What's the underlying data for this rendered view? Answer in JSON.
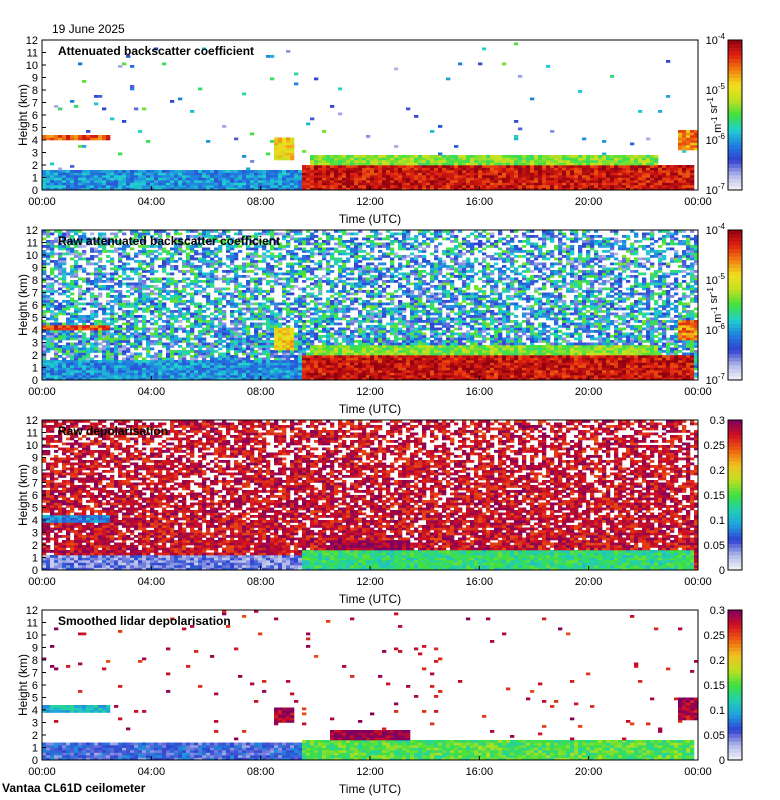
{
  "date": "19 June 2025",
  "footer": "Vantaa CL61D ceilometer",
  "colors": {
    "background": "#ffffff",
    "frame": "#000000",
    "no_data": "#ffffff"
  },
  "chart_data": [
    {
      "type": "heatmap",
      "title": "Attenuated backscatter coefficient",
      "xlabel": "Time (UTC)",
      "ylabel": "Height (km)",
      "xlim": [
        0,
        24
      ],
      "ylim": [
        0,
        12
      ],
      "x_ticks": [
        "00:00",
        "04:00",
        "08:00",
        "12:00",
        "16:00",
        "20:00",
        "00:00"
      ],
      "y_ticks": [
        "0",
        "1",
        "2",
        "3",
        "4",
        "5",
        "6",
        "7",
        "8",
        "9",
        "10",
        "11",
        "12"
      ],
      "colorbar": {
        "scale": "log",
        "range": [
          1e-07,
          0.0001
        ],
        "tick_labels": [
          "10-7",
          "10-6",
          "10-5",
          "10-4"
        ],
        "tick_values": [
          -7,
          -6,
          -5,
          -4
        ],
        "label": "m-1 sr-1",
        "colormap": [
          "#f4f4f8",
          "#b0b8e8",
          "#3040d0",
          "#2080e0",
          "#20d0d0",
          "#40e040",
          "#c0e020",
          "#f0e020",
          "#f08010",
          "#e02010",
          "#900010"
        ]
      },
      "noise_level": 0.015,
      "features": [
        {
          "name": "low cloud layer",
          "hours": [
            0,
            2.5
          ],
          "height_km": [
            4.0,
            4.3
          ],
          "value": 0.85
        },
        {
          "name": "boundary layer",
          "hours": [
            0,
            9.5
          ],
          "height_km": [
            0,
            1.6
          ],
          "value": 0.32
        },
        {
          "name": "daytime boundary layer",
          "hours": [
            9.5,
            23.8
          ],
          "height_km": [
            0,
            2.0
          ],
          "value": 0.93
        },
        {
          "name": "afternoon cloud",
          "hours": [
            9.8,
            22.5
          ],
          "height_km": [
            2.0,
            2.8
          ],
          "value": 0.55
        },
        {
          "name": "convective plume",
          "hours": [
            8.5,
            9.2
          ],
          "height_km": [
            2.5,
            4.2
          ],
          "value": 0.7
        },
        {
          "name": "late evening cloud",
          "hours": [
            23.3,
            24
          ],
          "height_km": [
            3.3,
            4.8
          ],
          "value": 0.8
        }
      ]
    },
    {
      "type": "heatmap",
      "title": "Raw attenuated backscatter coefficient",
      "xlabel": "Time (UTC)",
      "ylabel": "Height (km)",
      "xlim": [
        0,
        24
      ],
      "ylim": [
        0,
        12
      ],
      "x_ticks": [
        "00:00",
        "04:00",
        "08:00",
        "12:00",
        "16:00",
        "20:00",
        "00:00"
      ],
      "y_ticks": [
        "0",
        "1",
        "2",
        "3",
        "4",
        "5",
        "6",
        "7",
        "8",
        "9",
        "10",
        "11",
        "12"
      ],
      "colorbar": {
        "scale": "log",
        "range": [
          1e-07,
          0.0001
        ],
        "tick_labels": [
          "10-7",
          "10-6",
          "10-5",
          "10-4"
        ],
        "tick_values": [
          -7,
          -6,
          -5,
          -4
        ],
        "label": "m-1 sr-1",
        "colormap": [
          "#f4f4f8",
          "#b0b8e8",
          "#3040d0",
          "#2080e0",
          "#20d0d0",
          "#40e040",
          "#c0e020",
          "#f0e020",
          "#f08010",
          "#e02010",
          "#900010"
        ]
      },
      "noise_level": 0.85,
      "features": [
        {
          "name": "low cloud layer",
          "hours": [
            0,
            2.5
          ],
          "height_km": [
            4.0,
            4.3
          ],
          "value": 0.85
        },
        {
          "name": "boundary layer",
          "hours": [
            0,
            9.5
          ],
          "height_km": [
            0,
            1.6
          ],
          "value": 0.32
        },
        {
          "name": "daytime boundary layer",
          "hours": [
            9.5,
            23.8
          ],
          "height_km": [
            0,
            2.0
          ],
          "value": 0.93
        },
        {
          "name": "afternoon cloud",
          "hours": [
            9.8,
            22.5
          ],
          "height_km": [
            2.0,
            2.8
          ],
          "value": 0.55
        },
        {
          "name": "convective plume",
          "hours": [
            8.5,
            9.2
          ],
          "height_km": [
            2.5,
            4.2
          ],
          "value": 0.7
        },
        {
          "name": "late evening cloud",
          "hours": [
            23.3,
            24
          ],
          "height_km": [
            3.3,
            4.8
          ],
          "value": 0.8
        }
      ]
    },
    {
      "type": "heatmap",
      "title": "Raw depolarisation",
      "xlabel": "Time (UTC)",
      "ylabel": "Height (km)",
      "xlim": [
        0,
        24
      ],
      "ylim": [
        0,
        12
      ],
      "x_ticks": [
        "00:00",
        "04:00",
        "08:00",
        "12:00",
        "16:00",
        "20:00",
        "00:00"
      ],
      "y_ticks": [
        "0",
        "1",
        "2",
        "3",
        "4",
        "5",
        "6",
        "7",
        "8",
        "9",
        "10",
        "11",
        "12"
      ],
      "colorbar": {
        "scale": "linear",
        "range": [
          0,
          0.3
        ],
        "tick_labels": [
          "0",
          "0.05",
          "0.1",
          "0.15",
          "0.2",
          "0.25",
          "0.3"
        ],
        "tick_values": [
          0,
          0.05,
          0.1,
          0.15,
          0.2,
          0.25,
          0.3
        ],
        "label": "",
        "colormap": [
          "#f4f4f8",
          "#b0b8e8",
          "#3040d0",
          "#20a0e0",
          "#20d0b0",
          "#40e040",
          "#c0e020",
          "#f0c020",
          "#f06010",
          "#d01020",
          "#800060"
        ]
      },
      "noise_level": 0.95,
      "features": [
        {
          "name": "boundary layer",
          "hours": [
            0,
            9.5
          ],
          "height_km": [
            0,
            1.2
          ],
          "value": 0.15
        },
        {
          "name": "daytime boundary layer",
          "hours": [
            9.5,
            23.8
          ],
          "height_km": [
            0,
            1.6
          ],
          "value": 0.45
        },
        {
          "name": "afternoon elevated layer",
          "hours": [
            10.5,
            13.5
          ],
          "height_km": [
            1.6,
            2.4
          ],
          "value": 0.98
        },
        {
          "name": "low cloud layer",
          "hours": [
            0,
            2.5
          ],
          "height_km": [
            3.8,
            4.3
          ],
          "value": 0.3
        }
      ]
    },
    {
      "type": "heatmap",
      "title": "Smoothed lidar depolarisation",
      "xlabel": "Time (UTC)",
      "ylabel": "Height (km)",
      "xlim": [
        0,
        24
      ],
      "ylim": [
        0,
        12
      ],
      "x_ticks": [
        "00:00",
        "04:00",
        "08:00",
        "12:00",
        "16:00",
        "20:00",
        "00:00"
      ],
      "y_ticks": [
        "0",
        "1",
        "2",
        "3",
        "4",
        "5",
        "6",
        "7",
        "8",
        "9",
        "10",
        "11",
        "12"
      ],
      "colorbar": {
        "scale": "linear",
        "range": [
          0,
          0.3
        ],
        "tick_labels": [
          "0",
          "0.05",
          "0.1",
          "0.15",
          "0.2",
          "0.25",
          "0.3"
        ],
        "tick_values": [
          0,
          0.05,
          0.1,
          0.15,
          0.2,
          0.25,
          0.3
        ],
        "label": "",
        "colormap": [
          "#f4f4f8",
          "#b0b8e8",
          "#3040d0",
          "#20a0e0",
          "#20d0b0",
          "#40e040",
          "#c0e020",
          "#f0c020",
          "#f06010",
          "#d01020",
          "#800060"
        ]
      },
      "noise_level": 0.02,
      "features": [
        {
          "name": "boundary layer",
          "hours": [
            0,
            9.5
          ],
          "height_km": [
            0,
            1.4
          ],
          "value": 0.2
        },
        {
          "name": "daytime boundary layer",
          "hours": [
            9.5,
            23.8
          ],
          "height_km": [
            0,
            1.6
          ],
          "value": 0.5
        },
        {
          "name": "afternoon elevated layer",
          "hours": [
            10.5,
            13.5
          ],
          "height_km": [
            1.6,
            2.4
          ],
          "value": 0.98
        },
        {
          "name": "low cloud layer",
          "hours": [
            0,
            2.5
          ],
          "height_km": [
            3.8,
            4.3
          ],
          "value": 0.35
        },
        {
          "name": "convective plume",
          "hours": [
            8.5,
            9.2
          ],
          "height_km": [
            3.0,
            4.2
          ],
          "value": 0.95
        },
        {
          "name": "late evening cloud",
          "hours": [
            23.3,
            24
          ],
          "height_km": [
            3.3,
            5.0
          ],
          "value": 0.95
        }
      ]
    }
  ]
}
